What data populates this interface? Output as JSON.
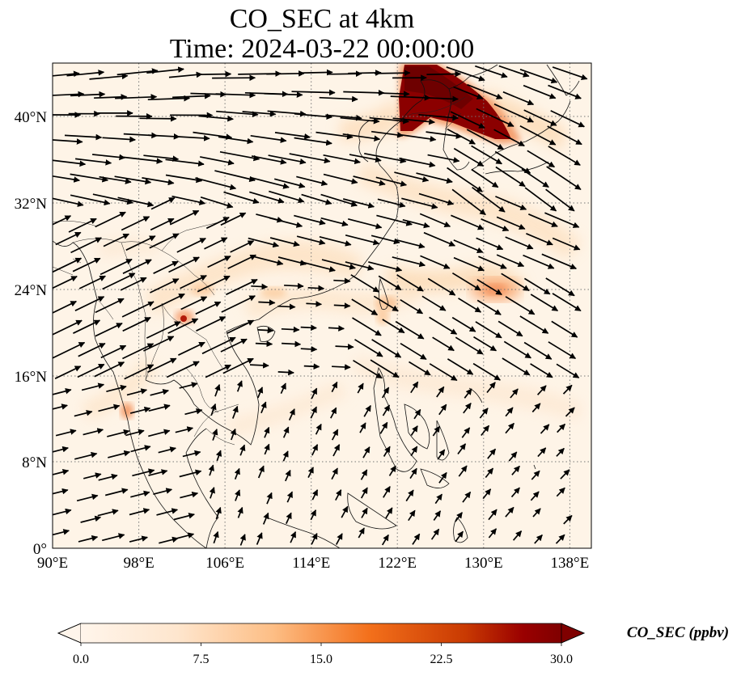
{
  "title": {
    "line1": "CO_SEC at 4km",
    "line2": "Time: 2024-03-22 00:00:00"
  },
  "map": {
    "lon_range": [
      90,
      140
    ],
    "lat_range": [
      0,
      45
    ],
    "lon_ticks": [
      {
        "value": 90,
        "label": "90°E"
      },
      {
        "value": 98,
        "label": "98°E"
      },
      {
        "value": 106,
        "label": "106°E"
      },
      {
        "value": 114,
        "label": "114°E"
      },
      {
        "value": 122,
        "label": "122°E"
      },
      {
        "value": 130,
        "label": "130°E"
      },
      {
        "value": 138,
        "label": "138°E"
      }
    ],
    "lat_ticks": [
      {
        "value": 0,
        "label": "0°"
      },
      {
        "value": 8,
        "label": "8°N"
      },
      {
        "value": 16,
        "label": "16°N"
      },
      {
        "value": 24,
        "label": "24°N"
      },
      {
        "value": 32,
        "label": "32°N"
      },
      {
        "value": 40,
        "label": "40°N"
      }
    ],
    "gridlines": true
  },
  "colorbar": {
    "label": "CO_SEC (ppbv)",
    "min": 0,
    "max": 30,
    "ticks": [
      "0.0",
      "7.5",
      "15.0",
      "22.5",
      "30.0"
    ],
    "colormap": [
      "#fff5eb",
      "#fdd9b4",
      "#fda762",
      "#e5530f",
      "#a63603",
      "#7f0000"
    ],
    "extend": "both"
  }
}
